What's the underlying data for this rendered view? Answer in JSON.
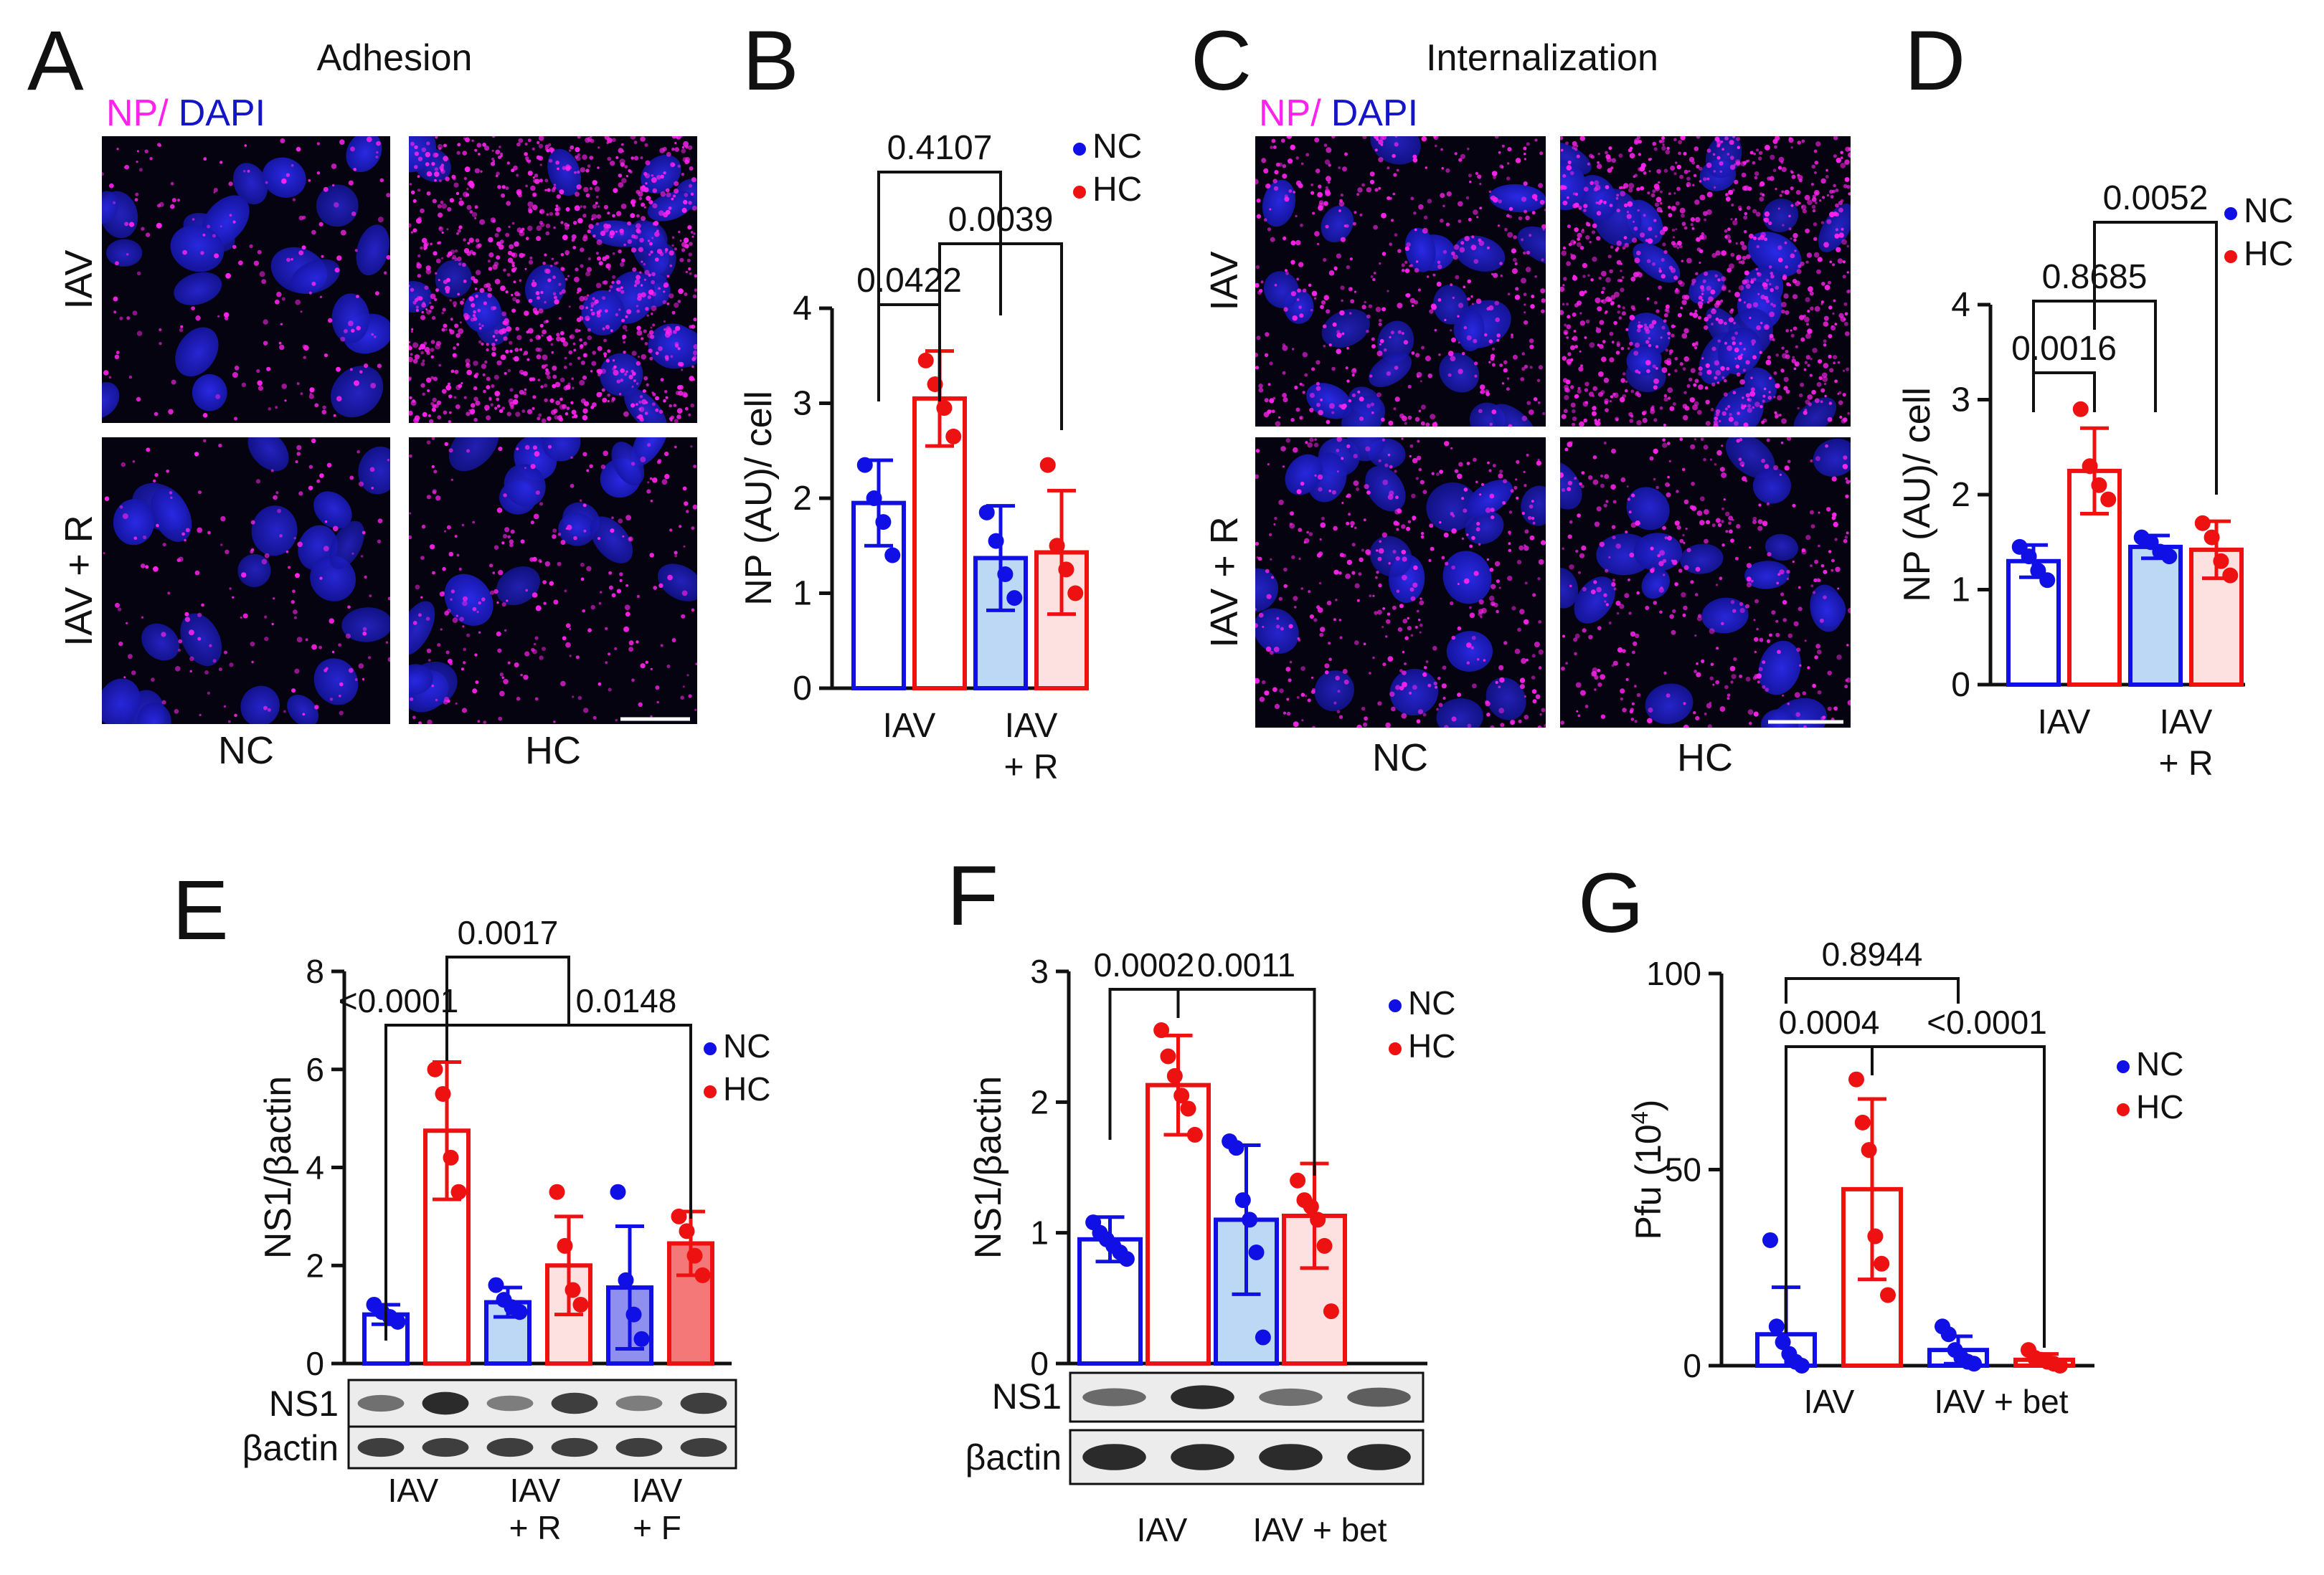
{
  "colors": {
    "nc": "#1010e6",
    "hc": "#ee1111",
    "nc_fill_light": "#bcd8f5",
    "hc_fill_light": "#fde0e0",
    "nc_fill_mid": "#8f8ff0",
    "hc_fill_mid": "#f57878",
    "dapi": "#1515c8",
    "np": "#ff22ee",
    "black": "#111111",
    "micro_bg": "#05030f"
  },
  "panels": {
    "A": {
      "letter": "A",
      "title": "Adhesion",
      "legend_np": "NP/",
      "legend_dapi": "DAPI",
      "row_labels": [
        "IAV",
        "IAV + R"
      ],
      "col_labels": [
        "NC",
        "HC"
      ]
    },
    "C": {
      "letter": "C",
      "title": "Internalization",
      "legend_np": "NP/",
      "legend_dapi": "DAPI",
      "row_labels": [
        "IAV",
        "IAV + R"
      ],
      "col_labels": [
        "NC",
        "HC"
      ]
    },
    "E": {
      "blot_labels": [
        "NS1",
        "βactin"
      ]
    },
    "F": {
      "blot_labels": [
        "NS1",
        "βactin"
      ]
    }
  },
  "chart_data": [
    {
      "panel": "B",
      "type": "bar",
      "ylabel": "NP (AU)/ cell",
      "ylim": [
        0,
        4
      ],
      "yticks": [
        "0",
        "1",
        "2",
        "3",
        "4"
      ],
      "groups": [
        "IAV",
        "IAV\n+ R"
      ],
      "legend": [
        "NC",
        "HC"
      ],
      "bars": [
        {
          "series": "NC",
          "style": "open",
          "value": 1.95,
          "err": 0.45,
          "points": [
            2.35,
            2.0,
            1.75,
            1.4
          ]
        },
        {
          "series": "HC",
          "style": "open",
          "value": 3.05,
          "err": 0.5,
          "points": [
            3.45,
            3.2,
            2.95,
            2.65
          ]
        },
        {
          "series": "NC",
          "style": "light",
          "value": 1.37,
          "err": 0.55,
          "points": [
            1.85,
            1.55,
            1.2,
            0.95
          ]
        },
        {
          "series": "HC",
          "style": "light",
          "value": 1.43,
          "err": 0.65,
          "points": [
            2.35,
            1.5,
            1.25,
            1.0
          ]
        }
      ],
      "comparisons": [
        {
          "from": 0,
          "to": 1,
          "label": "0.0422"
        },
        {
          "from": 0,
          "to": 2,
          "label": "0.4107"
        },
        {
          "from": 1,
          "to": 3,
          "label": "0.0039"
        }
      ]
    },
    {
      "panel": "D",
      "type": "bar",
      "ylabel": "NP (AU)/ cell",
      "ylim": [
        0,
        4
      ],
      "yticks": [
        "0",
        "1",
        "2",
        "3",
        "4"
      ],
      "groups": [
        "IAV",
        "IAV\n+ R"
      ],
      "legend": [
        "NC",
        "HC"
      ],
      "bars": [
        {
          "series": "NC",
          "style": "open",
          "value": 1.3,
          "err": 0.17,
          "points": [
            1.45,
            1.35,
            1.2,
            1.1
          ]
        },
        {
          "series": "HC",
          "style": "open",
          "value": 2.25,
          "err": 0.45,
          "points": [
            2.9,
            2.3,
            2.1,
            1.95
          ]
        },
        {
          "series": "NC",
          "style": "light",
          "value": 1.45,
          "err": 0.12,
          "points": [
            1.55,
            1.5,
            1.4,
            1.35
          ]
        },
        {
          "series": "HC",
          "style": "light",
          "value": 1.42,
          "err": 0.3,
          "points": [
            1.7,
            1.55,
            1.3,
            1.15
          ]
        }
      ],
      "comparisons": [
        {
          "from": 0,
          "to": 1,
          "label": "0.0016"
        },
        {
          "from": 0,
          "to": 2,
          "label": "0.8685"
        },
        {
          "from": 1,
          "to": 3,
          "label": "0.0052"
        }
      ]
    },
    {
      "panel": "E",
      "type": "bar",
      "ylabel": "NS1/βactin",
      "ylim": [
        0,
        8
      ],
      "yticks": [
        "0",
        "2",
        "4",
        "6",
        "8"
      ],
      "groups": [
        "IAV",
        "IAV\n+ R",
        "IAV\n+ F"
      ],
      "legend": [
        "NC",
        "HC"
      ],
      "bars": [
        {
          "series": "NC",
          "style": "open",
          "value": 1.0,
          "err": 0.2,
          "points": [
            1.2,
            1.05,
            0.95,
            0.85
          ]
        },
        {
          "series": "HC",
          "style": "open",
          "value": 4.75,
          "err": 1.4,
          "points": [
            6.0,
            5.5,
            4.2,
            3.5
          ]
        },
        {
          "series": "NC",
          "style": "light",
          "value": 1.25,
          "err": 0.3,
          "points": [
            1.6,
            1.3,
            1.15,
            1.05
          ]
        },
        {
          "series": "HC",
          "style": "light",
          "value": 2.0,
          "err": 1.0,
          "points": [
            3.5,
            2.4,
            1.5,
            1.2
          ]
        },
        {
          "series": "NC",
          "style": "mid",
          "value": 1.55,
          "err": 1.25,
          "points": [
            3.5,
            1.7,
            1.0,
            0.5
          ]
        },
        {
          "series": "HC",
          "style": "mid",
          "value": 2.45,
          "err": 0.65,
          "points": [
            3.0,
            2.7,
            2.2,
            1.8
          ]
        }
      ],
      "comparisons": [
        {
          "from": 0,
          "to": 1,
          "label": "<0.0001"
        },
        {
          "from": 1,
          "to": 3,
          "label": "0.0017"
        },
        {
          "from": 1,
          "to": 5,
          "label": "0.0148"
        }
      ]
    },
    {
      "panel": "F",
      "type": "bar",
      "ylabel": "NS1/βactin",
      "ylim": [
        0,
        3
      ],
      "yticks": [
        "0",
        "1",
        "2",
        "3"
      ],
      "groups": [
        "IAV",
        "IAV + bet"
      ],
      "legend": [
        "NC",
        "HC"
      ],
      "bars": [
        {
          "series": "NC",
          "style": "open",
          "value": 0.95,
          "err": 0.17,
          "points": [
            1.08,
            1.0,
            0.95,
            0.9,
            0.85,
            0.8
          ]
        },
        {
          "series": "HC",
          "style": "open",
          "value": 2.13,
          "err": 0.38,
          "points": [
            2.55,
            2.35,
            2.2,
            2.05,
            1.95,
            1.75
          ]
        },
        {
          "series": "NC",
          "style": "light",
          "value": 1.1,
          "err": 0.57,
          "points": [
            1.7,
            1.65,
            1.25,
            1.1,
            0.85,
            0.2
          ]
        },
        {
          "series": "HC",
          "style": "light",
          "value": 1.13,
          "err": 0.4,
          "points": [
            1.4,
            1.25,
            1.2,
            1.1,
            0.9,
            0.4
          ]
        }
      ],
      "comparisons": [
        {
          "from": 0,
          "to": 1,
          "label": "0.0002"
        },
        {
          "from": 1,
          "to": 3,
          "label": "0.0011"
        }
      ]
    },
    {
      "panel": "G",
      "type": "bar",
      "ylabel": "Pfu (10",
      "ylabel_sup": "4",
      "ylabel_end": ")",
      "ylim": [
        0,
        100
      ],
      "yticks": [
        "0",
        "50",
        "100"
      ],
      "groups": [
        "IAV",
        "IAV + bet"
      ],
      "legend": [
        "NC",
        "HC"
      ],
      "bars": [
        {
          "series": "NC",
          "style": "open",
          "value": 8,
          "err": 12,
          "points": [
            32,
            10,
            6,
            3,
            1,
            0
          ]
        },
        {
          "series": "HC",
          "style": "open",
          "value": 45,
          "err": 23,
          "points": [
            73,
            62,
            55,
            33,
            26,
            18
          ]
        },
        {
          "series": "NC",
          "style": "open",
          "value": 4,
          "err": 3.5,
          "points": [
            10,
            8,
            4,
            2,
            1,
            0.5
          ]
        },
        {
          "series": "HC",
          "style": "open",
          "value": 1.5,
          "err": 1.5,
          "points": [
            4,
            2,
            1.5,
            1,
            0.5,
            0
          ]
        }
      ],
      "comparisons": [
        {
          "from": 0,
          "to": 1,
          "label": "0.0004"
        },
        {
          "from": 0,
          "to": 2,
          "label": "0.8944"
        },
        {
          "from": 1,
          "to": 3,
          "label": "<0.0001"
        }
      ]
    }
  ]
}
